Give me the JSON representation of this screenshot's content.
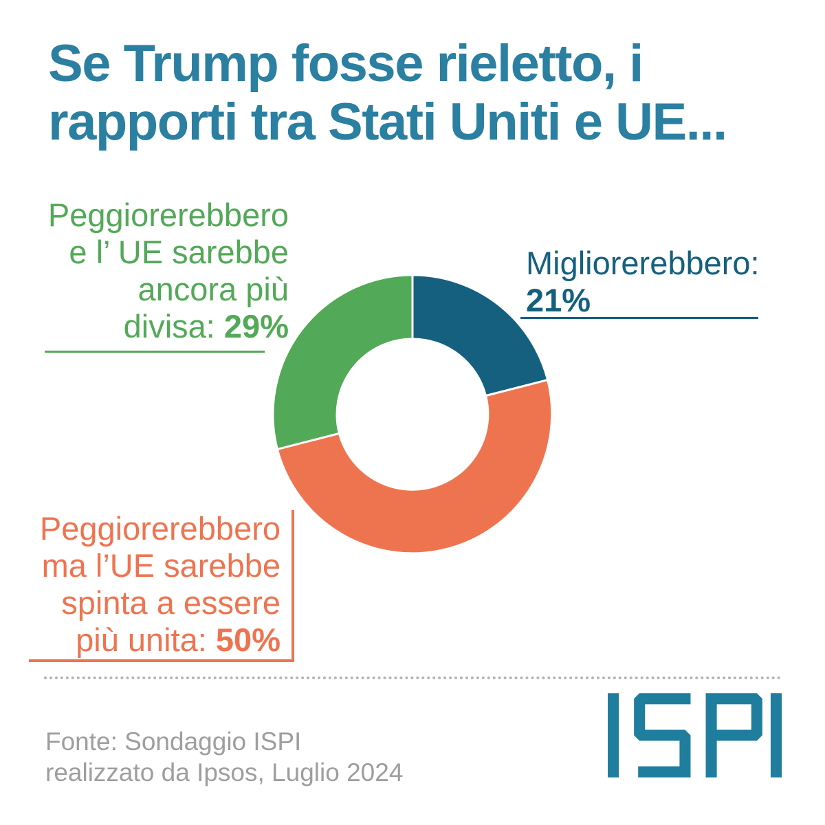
{
  "title": {
    "line1": "Se Trump fosse rieletto, i",
    "line2": "rapporti tra Stati Uniti e UE..."
  },
  "labels": {
    "green": {
      "line1": "Peggiorerebbero",
      "line2": "e l’ UE sarebbe",
      "line3": "ancora più",
      "line4_prefix": "divisa: ",
      "value": "29%"
    },
    "teal": {
      "line1": "Migliorerebbero:",
      "value": "21%"
    },
    "orange": {
      "line1": "Peggiorerebbero",
      "line2": "ma l’UE sarebbe",
      "line3": "spinta a essere",
      "line4_prefix": "più unita: ",
      "value": "50%"
    }
  },
  "footer": {
    "source_line1": "Fonte: Sondaggio ISPI",
    "source_line2": "realizzato da Ipsos, Luglio 2024",
    "logo_text": "ISPI"
  },
  "colors": {
    "title_teal": "#2b7fa1",
    "dark_teal": "#15607f",
    "orange": "#ee7450",
    "green": "#52a957",
    "gray_text": "#9e9e9e",
    "dotted_gray": "#b3b3b3",
    "logo_teal": "#1f7d9e",
    "background": "#ffffff"
  },
  "chart_data": {
    "type": "pie",
    "subtype": "donut",
    "title": "Se Trump fosse rieletto, i rapporti tra Stati Uniti e UE...",
    "units": "%",
    "start_angle_deg_from_top": 0,
    "direction": "clockwise",
    "inner_radius_ratio": 0.54,
    "gap_stroke_color": "#ffffff",
    "slices": [
      {
        "label": "Migliorerebbero",
        "value": 21,
        "color": "#15607f"
      },
      {
        "label": "Peggiorerebbero ma l’UE sarebbe spinta a essere più unita",
        "value": 50,
        "color": "#ee7450"
      },
      {
        "label": "Peggiorerebbero e l’ UE sarebbe ancora più divisa",
        "value": 29,
        "color": "#52a957"
      }
    ],
    "source": "Fonte: Sondaggio ISPI realizzato da Ipsos, Luglio 2024"
  }
}
